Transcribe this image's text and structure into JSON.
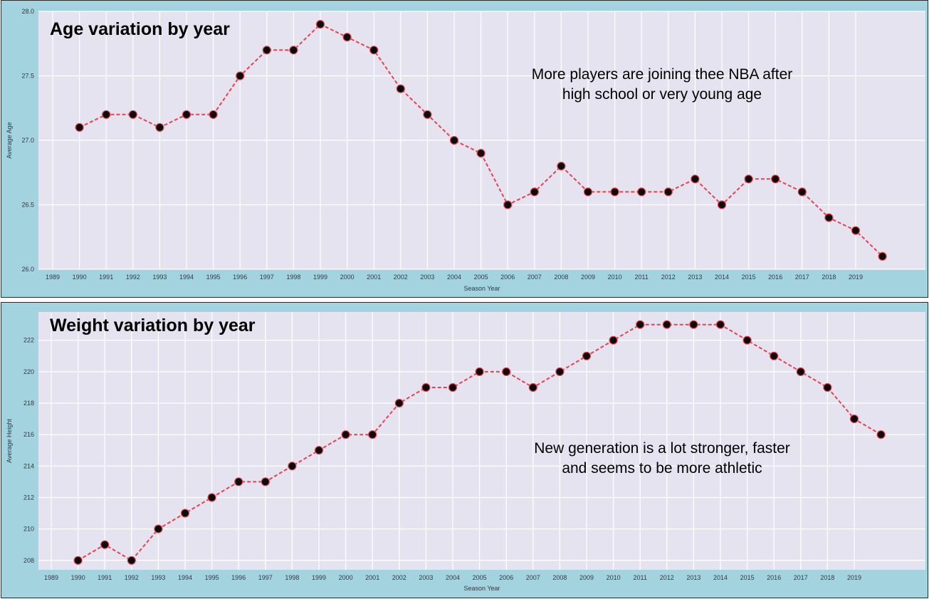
{
  "chart_data": [
    {
      "type": "line",
      "title": "Age variation by year",
      "xlabel": "Season Year",
      "ylabel": "Average Age",
      "ylim": [
        26.0,
        28.0
      ],
      "yticks": [
        "26.0",
        "26.5",
        "27.0",
        "27.5",
        "28.0"
      ],
      "categories": [
        "1989",
        "1990",
        "1991",
        "1992",
        "1993",
        "1994",
        "1995",
        "1996",
        "1997",
        "1998",
        "1999",
        "2000",
        "2001",
        "2002",
        "2003",
        "2004",
        "2005",
        "2006",
        "2007",
        "2008",
        "2009",
        "2010",
        "2011",
        "2012",
        "2013",
        "2014",
        "2015",
        "2016",
        "2017",
        "2018",
        "2019"
      ],
      "values": [
        27.1,
        27.2,
        27.2,
        27.1,
        27.2,
        27.2,
        27.5,
        27.7,
        27.7,
        27.9,
        27.8,
        27.7,
        27.4,
        27.2,
        27.0,
        26.9,
        26.5,
        26.6,
        26.8,
        26.6,
        26.6,
        26.6,
        26.6,
        26.7,
        26.5,
        26.7,
        26.7,
        26.6,
        26.4,
        26.3,
        26.1
      ],
      "grid": true,
      "line_color": "#e8424e",
      "marker_color": "#0c0c0c",
      "annotation": [
        "More players are joining thee NBA after",
        "high school or very young age"
      ]
    },
    {
      "type": "line",
      "title": "Weight variation by year",
      "xlabel": "Season Year",
      "ylabel": "Average Height",
      "ylim": [
        207.4,
        223.8
      ],
      "yticks": [
        "208",
        "210",
        "212",
        "214",
        "216",
        "218",
        "220",
        "222"
      ],
      "categories": [
        "1989",
        "1990",
        "1991",
        "1992",
        "1993",
        "1994",
        "1995",
        "1996",
        "1997",
        "1998",
        "1999",
        "2000",
        "2001",
        "2002",
        "2003",
        "2004",
        "2005",
        "2006",
        "2007",
        "2008",
        "2009",
        "2010",
        "2011",
        "2012",
        "2013",
        "2014",
        "2015",
        "2016",
        "2017",
        "2018",
        "2019"
      ],
      "values": [
        208,
        209,
        208,
        210,
        211,
        212,
        213,
        213,
        214,
        215,
        216,
        216,
        218,
        219,
        219,
        220,
        220,
        219,
        220,
        221,
        222,
        223,
        223,
        223,
        223,
        222,
        221,
        220,
        219,
        217,
        216
      ],
      "grid": true,
      "line_color": "#e8424e",
      "marker_color": "#0c0c0c",
      "annotation": [
        "New generation is a lot stronger, faster",
        "and seems to be more athletic"
      ]
    }
  ]
}
